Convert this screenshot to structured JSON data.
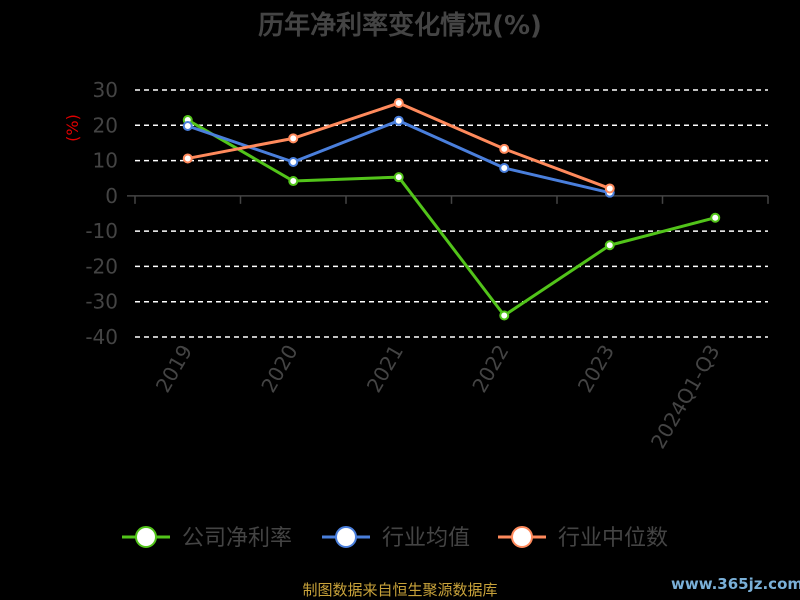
{
  "chart_data": {
    "type": "line",
    "title": "历年净利率变化情况(%)",
    "ylabel": "(%)",
    "xlabel": "",
    "categories": [
      "2019",
      "2020",
      "2021",
      "2022",
      "2023",
      "2024Q1-Q3"
    ],
    "ylim": [
      -40,
      30
    ],
    "yticks": [
      30,
      20,
      10,
      0,
      -10,
      -20,
      -30,
      -40
    ],
    "grid": true,
    "legend_position": "bottom",
    "series": [
      {
        "name": "公司净利率",
        "color": "#52c41a",
        "values": [
          21.5,
          4.2,
          5.3,
          -33.9,
          -14.0,
          -6.2
        ]
      },
      {
        "name": "行业均值",
        "color": "#4a7fdc",
        "values": [
          19.8,
          9.6,
          21.3,
          7.9,
          0.9,
          null
        ]
      },
      {
        "name": "行业中位数",
        "color": "#ff8a5c",
        "values": [
          10.6,
          16.3,
          26.3,
          13.3,
          2.1,
          null
        ]
      }
    ]
  },
  "footer": {
    "source": "制图数据来自恒生聚源数据库",
    "watermark": "www.365jz.com"
  }
}
